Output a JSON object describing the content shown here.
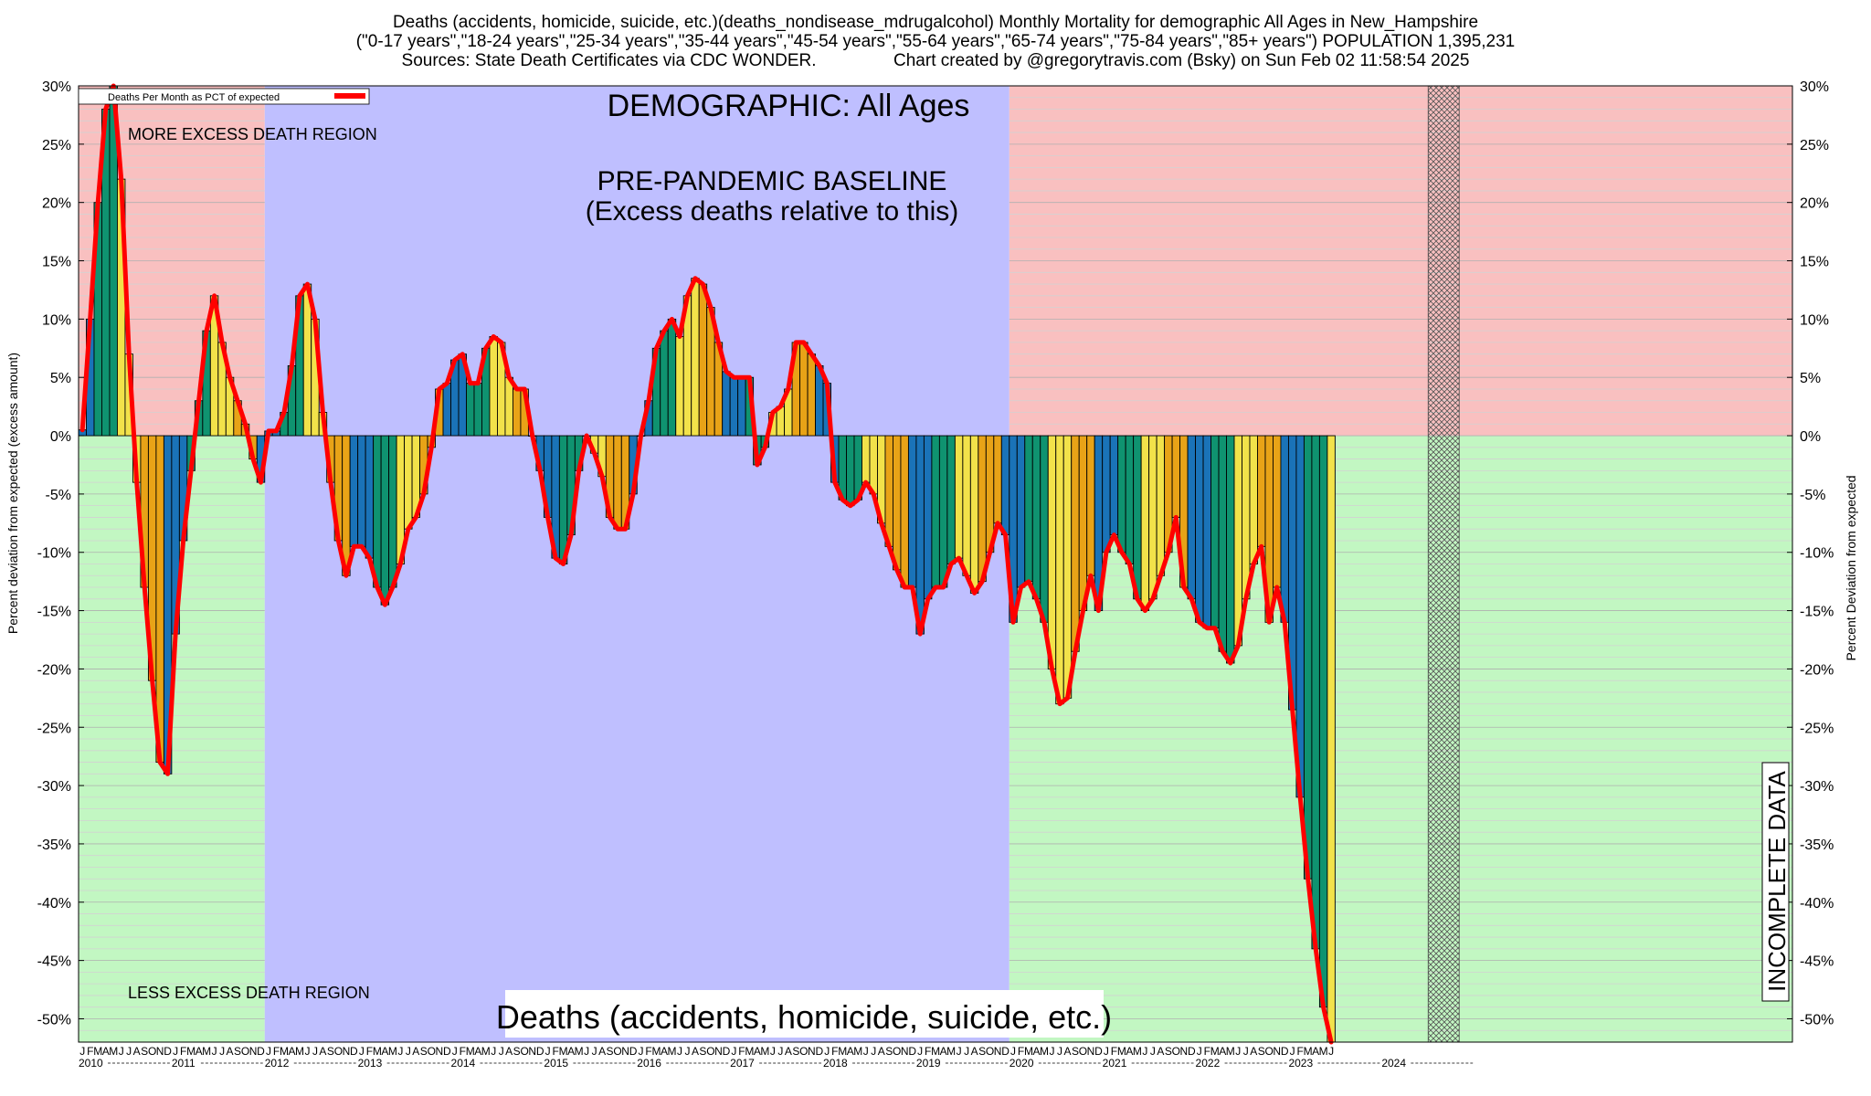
{
  "header": {
    "title_line1": "Deaths (accidents, homicide, suicide, etc.)(deaths_nondisease_mdrugalcohol) Monthly Mortality for demographic All Ages in New_Hampshire",
    "title_line2": "(\"0-17 years\",\"18-24 years\",\"25-34 years\",\"35-44 years\",\"45-54 years\",\"55-64 years\",\"65-74 years\",\"75-84 years\",\"85+ years\") POPULATION 1,395,231",
    "title_line3": "Sources: State Death Certificates via CDC WONDER.                Chart created by @gregorytravis.com (Bsky) on Sun Feb 02 11:58:54 2025"
  },
  "chart_data": {
    "type": "bar",
    "subtitle": "DEMOGRAPHIC: All Ages",
    "footer_label": "Deaths (accidents, homicide, suicide, etc.)",
    "ylabel_left": "Percent deviation from expected (excess amount)",
    "ylabel_right": "Percent Deviation from expected",
    "ylim": [
      -52,
      30
    ],
    "yticks": [
      30,
      25,
      20,
      15,
      10,
      5,
      0,
      -5,
      -10,
      -15,
      -20,
      -25,
      -30,
      -35,
      -40,
      -45,
      -50
    ],
    "grid": true,
    "legend": {
      "placement": "top-left",
      "entry": "Deaths Per Month as PCT of expected",
      "color": "#ff0000"
    },
    "region_labels": {
      "more": "MORE EXCESS DEATH REGION",
      "less": "LESS EXCESS DEATH REGION",
      "baseline_line1": "PRE-PANDEMIC BASELINE",
      "baseline_line2": "(Excess deaths relative to this)",
      "incomplete": "INCOMPLETE DATA"
    },
    "baseline_period": {
      "start": "2012-01",
      "end": "2019-12"
    },
    "incomplete_period": {
      "start": "2024-07",
      "end": "2024-10"
    },
    "x_start": "2010-01",
    "month_letters": [
      "J",
      "F",
      "M",
      "A",
      "M",
      "J",
      "J",
      "A",
      "S",
      "O",
      "N",
      "D"
    ],
    "years": [
      "2010",
      "2011",
      "2012",
      "2013",
      "2014",
      "2015",
      "2016",
      "2017",
      "2018",
      "2019",
      "2020",
      "2021",
      "2022",
      "2023",
      "2024"
    ],
    "season_colors": {
      "winter": "#1a73b8",
      "spring": "#0f9370",
      "summer": "#f2e24a",
      "fall": "#e8a317",
      "incomplete": "#c8a04a"
    },
    "region_colors": {
      "more": "#f9c0c0",
      "less": "#c2f7c2",
      "baseline": "#bfbfff"
    },
    "line_color": "#ff0000",
    "series": [
      {
        "values": [
          0.5,
          10,
          20,
          28,
          30,
          22,
          7,
          -4,
          -13,
          -21,
          -28,
          -29,
          -17,
          -9,
          -3,
          3,
          9,
          12,
          8,
          5,
          3,
          1,
          -2,
          -4,
          0.4,
          0.4,
          2,
          6,
          12,
          13,
          10,
          2,
          -4,
          -9,
          -12,
          -9.5,
          -9.5,
          -10.5,
          -13,
          -14.5,
          -13,
          -11,
          -8,
          -7,
          -5,
          -1,
          4,
          4.5,
          6.5,
          7,
          4.5,
          4.5,
          7.5,
          8.5,
          8,
          5,
          4,
          4,
          0,
          -3,
          -7,
          -10.5,
          -11,
          -8.5,
          -3,
          0,
          -1.5,
          -3.5,
          -7,
          -8,
          -8,
          -5,
          0,
          3,
          7.5,
          9,
          10,
          8.5,
          12,
          13.5,
          13,
          11,
          8,
          5.5,
          5,
          5,
          5,
          -2.5,
          -1,
          2,
          2.5,
          4,
          8,
          8,
          7,
          6,
          4.5,
          -4,
          -5.5,
          -6,
          -5.5,
          -4,
          -5,
          -7.5,
          -9.5,
          -11.5,
          -13,
          -13,
          -17,
          -14,
          -13,
          -13,
          -11,
          -10.5,
          -12,
          -13.5,
          -12.5,
          -10,
          -7.5,
          -8.5,
          -16,
          -13,
          -12.5,
          -14,
          -16,
          -20,
          -23,
          -22.5,
          -18.5,
          -15,
          -12,
          -15,
          -10,
          -8.5,
          -10,
          -11,
          -14,
          -15,
          -14,
          -12,
          -10,
          -7,
          -13,
          -14,
          -16,
          -16.5,
          -16.5,
          -18.5,
          -19.5,
          -18,
          -14,
          -11,
          -9.5,
          -16,
          -13,
          -16,
          -23.5,
          -31,
          -38,
          -44,
          -49,
          -52
        ]
      }
    ]
  }
}
